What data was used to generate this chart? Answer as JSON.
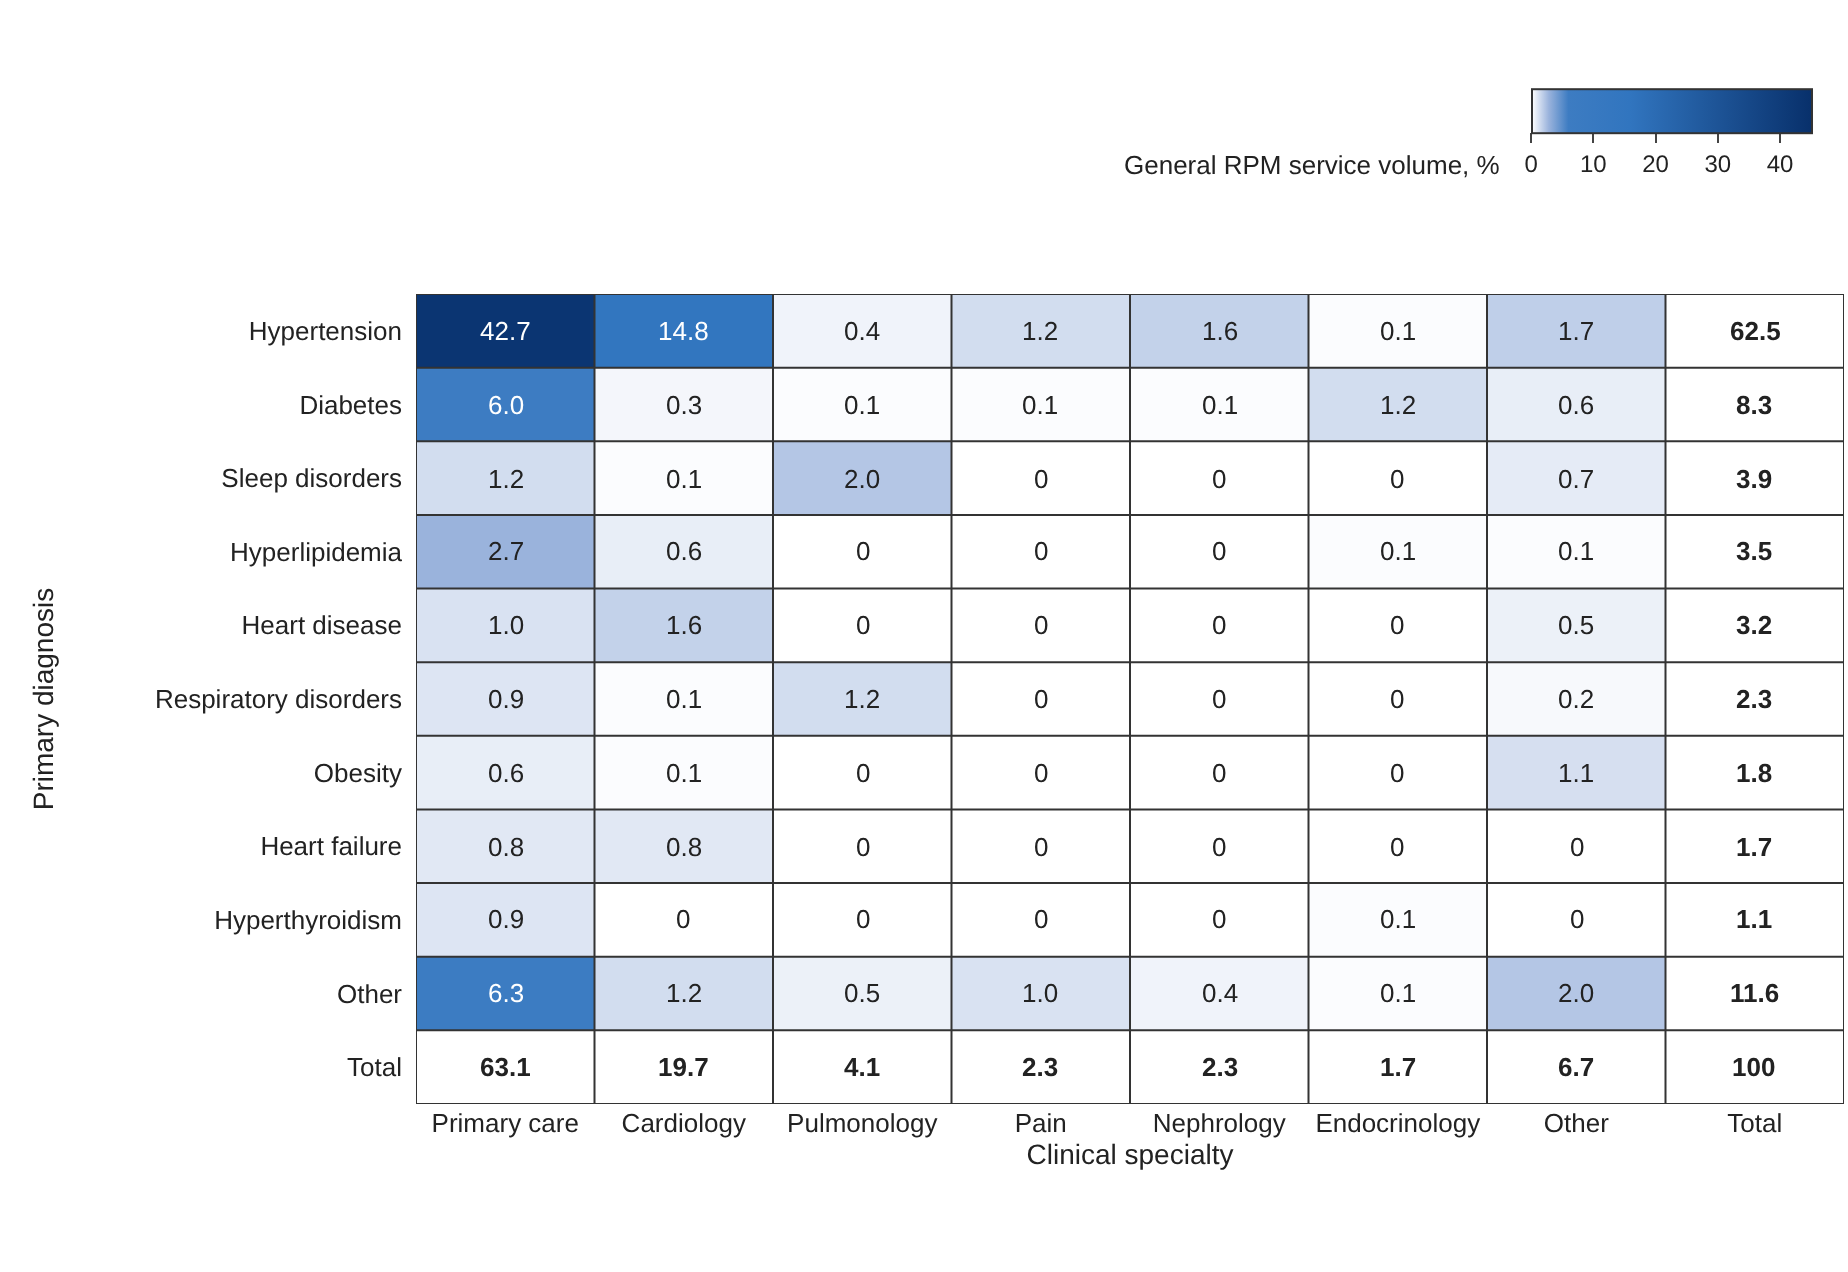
{
  "chart_data": {
    "type": "heatmap",
    "xlabel": "Clinical specialty",
    "ylabel": "Primary diagnosis",
    "clabel": "General RPM service volume, %",
    "categories": [
      "Primary care",
      "Cardiology",
      "Pulmonology",
      "Pain",
      "Nephrology",
      "Endocrinology",
      "Other",
      "Total"
    ],
    "y_categories": [
      "Hypertension",
      "Diabetes",
      "Sleep disorders",
      "Hyperlipidemia",
      "Heart disease",
      "Respiratory disorders",
      "Obesity",
      "Heart failure",
      "Hyperthyroidism",
      "Other",
      "Total"
    ],
    "cells": [
      [
        42.7,
        14.8,
        0.4,
        1.2,
        1.6,
        0.1,
        1.7,
        null
      ],
      [
        6.0,
        0.3,
        0.1,
        0.1,
        0.1,
        1.2,
        0.6,
        null
      ],
      [
        1.2,
        0.1,
        2.0,
        0,
        0,
        0,
        0.7,
        null
      ],
      [
        2.7,
        0.6,
        0,
        0,
        0,
        0.1,
        0.1,
        null
      ],
      [
        1.0,
        1.6,
        0,
        0,
        0,
        0,
        0.5,
        null
      ],
      [
        0.9,
        0.1,
        1.2,
        0,
        0,
        0,
        0.2,
        null
      ],
      [
        0.6,
        0.1,
        0,
        0,
        0,
        0,
        1.1,
        null
      ],
      [
        0.8,
        0.8,
        0,
        0,
        0,
        0,
        0,
        null
      ],
      [
        0.9,
        0,
        0,
        0,
        0,
        0.1,
        0,
        null
      ],
      [
        6.3,
        1.2,
        0.5,
        1.0,
        0.4,
        0.1,
        2.0,
        null
      ],
      [
        null,
        null,
        null,
        null,
        null,
        null,
        null,
        null
      ]
    ],
    "cell_labels": [
      [
        "42.7",
        "14.8",
        "0.4",
        "1.2",
        "1.6",
        "0.1",
        "1.7",
        "62.5"
      ],
      [
        "6.0",
        "0.3",
        "0.1",
        "0.1",
        "0.1",
        "1.2",
        "0.6",
        "8.3"
      ],
      [
        "1.2",
        "0.1",
        "2.0",
        "0",
        "0",
        "0",
        "0.7",
        "3.9"
      ],
      [
        "2.7",
        "0.6",
        "0",
        "0",
        "0",
        "0.1",
        "0.1",
        "3.5"
      ],
      [
        "1.0",
        "1.6",
        "0",
        "0",
        "0",
        "0",
        "0.5",
        "3.2"
      ],
      [
        "0.9",
        "0.1",
        "1.2",
        "0",
        "0",
        "0",
        "0.2",
        "2.3"
      ],
      [
        "0.6",
        "0.1",
        "0",
        "0",
        "0",
        "0",
        "1.1",
        "1.8"
      ],
      [
        "0.8",
        "0.8",
        "0",
        "0",
        "0",
        "0",
        "0",
        "1.7"
      ],
      [
        "0.9",
        "0",
        "0",
        "0",
        "0",
        "0.1",
        "0",
        "1.1"
      ],
      [
        "6.3",
        "1.2",
        "0.5",
        "1.0",
        "0.4",
        "0.1",
        "2.0",
        "11.6"
      ],
      [
        "63.1",
        "19.7",
        "4.1",
        "2.3",
        "2.3",
        "1.7",
        "6.7",
        "100"
      ]
    ],
    "clim": [
      0,
      45
    ],
    "cticks": [
      0,
      10,
      20,
      30,
      40
    ]
  }
}
